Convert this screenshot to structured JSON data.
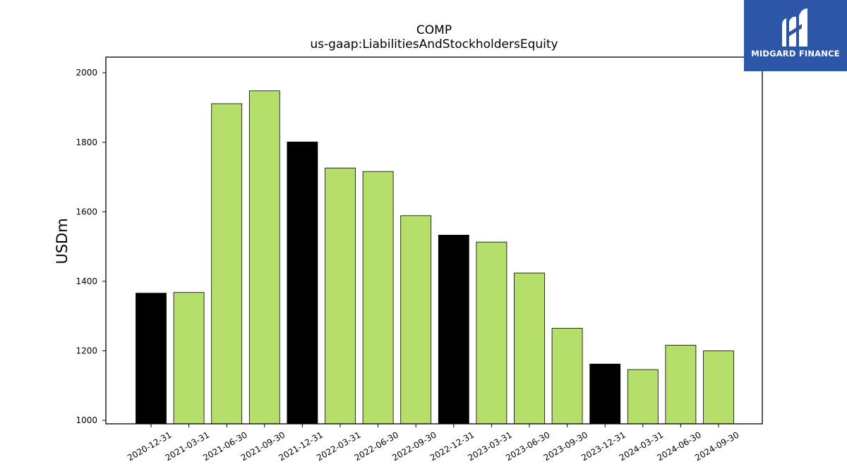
{
  "brand": {
    "logo_text": "MIDGARD FINANCE",
    "logo_bg": "#2c56a8",
    "logo_icon": "midgard-m-logo-icon"
  },
  "chart_data": {
    "type": "bar",
    "title": "COMP",
    "subtitle": "us-gaap:LiabilitiesAndStockholdersEquity",
    "ylabel": "USDm",
    "xlabel": "",
    "ylim": [
      990,
      2045
    ],
    "yticks": [
      1000,
      1200,
      1400,
      1600,
      1800,
      2000
    ],
    "categories": [
      "2020-12-31",
      "2021-03-31",
      "2021-06-30",
      "2021-09-30",
      "2021-12-31",
      "2022-03-31",
      "2022-06-30",
      "2022-09-30",
      "2022-12-31",
      "2023-03-31",
      "2023-06-30",
      "2023-09-30",
      "2023-12-31",
      "2024-03-31",
      "2024-06-30",
      "2024-09-30"
    ],
    "values": [
      1366,
      1368,
      1911,
      1948,
      1801,
      1726,
      1716,
      1589,
      1533,
      1513,
      1424,
      1265,
      1162,
      1146,
      1216,
      1200
    ],
    "bar_colors": [
      "#000000",
      "#b6de6b",
      "#b6de6b",
      "#b6de6b",
      "#000000",
      "#b6de6b",
      "#b6de6b",
      "#b6de6b",
      "#000000",
      "#b6de6b",
      "#b6de6b",
      "#b6de6b",
      "#000000",
      "#b6de6b",
      "#b6de6b",
      "#b6de6b"
    ],
    "grid": false,
    "legend": "none"
  }
}
